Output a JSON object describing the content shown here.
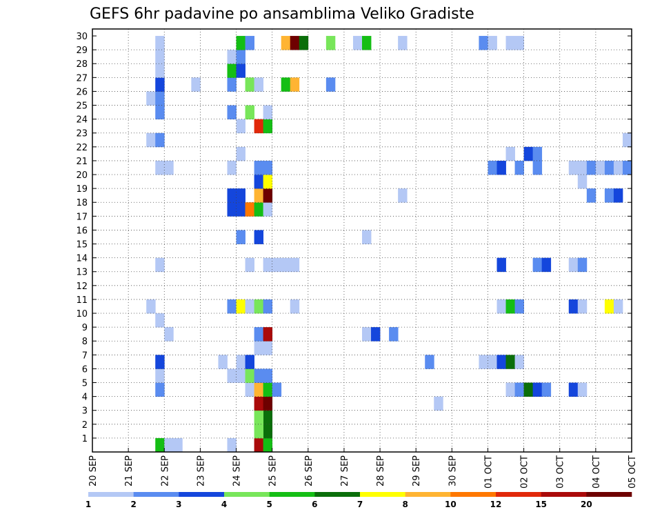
{
  "chart_data": {
    "type": "heatmap",
    "title": "GEFS 6hr padavine po ansamblima Veliko Gradiste",
    "xlabel": "",
    "ylabel": "",
    "x_tick_labels": [
      "20 SEP",
      "21 SEP",
      "22 SEP",
      "23 SEP",
      "24 SEP",
      "25 SEP",
      "26 SEP",
      "27 SEP",
      "28 SEP",
      "29 SEP",
      "30 SEP",
      "01 OCT",
      "02 OCT",
      "03 OCT",
      "04 OCT",
      "05 OCT"
    ],
    "y_tick_labels": [
      "1",
      "2",
      "3",
      "4",
      "5",
      "6",
      "7",
      "8",
      "9",
      "10",
      "11",
      "12",
      "13",
      "14",
      "15",
      "16",
      "17",
      "18",
      "19",
      "20",
      "21",
      "22",
      "23",
      "24",
      "25",
      "26",
      "27",
      "28",
      "29",
      "30"
    ],
    "x_unit": "6-hour step index from 20 SEP 00z",
    "xlim": [
      0,
      60
    ],
    "ylim": [
      0,
      30
    ],
    "grid": true,
    "colorbar": {
      "labels": [
        "1",
        "2",
        "3",
        "4",
        "5",
        "6",
        "7",
        "8",
        "10",
        "12",
        "15",
        "20"
      ],
      "colors": [
        "#b4c8f5",
        "#5a8cf0",
        "#1446dc",
        "#78e65a",
        "#14be14",
        "#0a6e0a",
        "#ffff00",
        "#ffb432",
        "#ff7800",
        "#e1280a",
        "#aa0a0a",
        "#6e0000"
      ]
    },
    "cells": [
      {
        "t": 7,
        "m": 0,
        "c": "#14be14"
      },
      {
        "t": 8,
        "m": 0,
        "c": "#b4c8f5"
      },
      {
        "t": 9,
        "m": 0,
        "c": "#b4c8f5"
      },
      {
        "t": 15,
        "m": 0,
        "c": "#b4c8f5"
      },
      {
        "t": 18,
        "m": 0,
        "c": "#aa0a0a"
      },
      {
        "t": 19,
        "m": 0,
        "c": "#14be14"
      },
      {
        "t": 19,
        "m": 1,
        "c": "#0a6e0a"
      },
      {
        "t": 18,
        "m": 1,
        "c": "#78e65a"
      },
      {
        "t": 19,
        "m": 2,
        "c": "#0a6e0a"
      },
      {
        "t": 18,
        "m": 2,
        "c": "#78e65a"
      },
      {
        "t": 18,
        "m": 3,
        "c": "#aa0a0a"
      },
      {
        "t": 19,
        "m": 3,
        "c": "#6e0000"
      },
      {
        "t": 38,
        "m": 3,
        "c": "#b4c8f5"
      },
      {
        "t": 7,
        "m": 4,
        "c": "#5a8cf0"
      },
      {
        "t": 17,
        "m": 4,
        "c": "#b4c8f5"
      },
      {
        "t": 18,
        "m": 4,
        "c": "#ffb432"
      },
      {
        "t": 19,
        "m": 4,
        "c": "#14be14"
      },
      {
        "t": 20,
        "m": 4,
        "c": "#5a8cf0"
      },
      {
        "t": 46,
        "m": 4,
        "c": "#b4c8f5"
      },
      {
        "t": 47,
        "m": 4,
        "c": "#5a8cf0"
      },
      {
        "t": 48,
        "m": 4,
        "c": "#0a6e0a"
      },
      {
        "t": 49,
        "m": 4,
        "c": "#1446dc"
      },
      {
        "t": 50,
        "m": 4,
        "c": "#5a8cf0"
      },
      {
        "t": 53,
        "m": 4,
        "c": "#1446dc"
      },
      {
        "t": 54,
        "m": 4,
        "c": "#b4c8f5"
      },
      {
        "t": 7,
        "m": 5,
        "c": "#b4c8f5"
      },
      {
        "t": 15,
        "m": 5,
        "c": "#b4c8f5"
      },
      {
        "t": 16,
        "m": 5,
        "c": "#b4c8f5"
      },
      {
        "t": 17,
        "m": 5,
        "c": "#78e65a"
      },
      {
        "t": 18,
        "m": 5,
        "c": "#5a8cf0"
      },
      {
        "t": 19,
        "m": 5,
        "c": "#5a8cf0"
      },
      {
        "t": 7,
        "m": 6,
        "c": "#1446dc"
      },
      {
        "t": 14,
        "m": 6,
        "c": "#b4c8f5"
      },
      {
        "t": 16,
        "m": 6,
        "c": "#b4c8f5"
      },
      {
        "t": 17,
        "m": 6,
        "c": "#1446dc"
      },
      {
        "t": 37,
        "m": 6,
        "c": "#5a8cf0"
      },
      {
        "t": 43,
        "m": 6,
        "c": "#b4c8f5"
      },
      {
        "t": 44,
        "m": 6,
        "c": "#b4c8f5"
      },
      {
        "t": 45,
        "m": 6,
        "c": "#1446dc"
      },
      {
        "t": 46,
        "m": 6,
        "c": "#0a6e0a"
      },
      {
        "t": 47,
        "m": 6,
        "c": "#b4c8f5"
      },
      {
        "t": 18,
        "m": 7,
        "c": "#b4c8f5"
      },
      {
        "t": 19,
        "m": 7,
        "c": "#b4c8f5"
      },
      {
        "t": 8,
        "m": 8,
        "c": "#b4c8f5"
      },
      {
        "t": 18,
        "m": 8,
        "c": "#5a8cf0"
      },
      {
        "t": 19,
        "m": 8,
        "c": "#aa0a0a"
      },
      {
        "t": 30,
        "m": 8,
        "c": "#b4c8f5"
      },
      {
        "t": 31,
        "m": 8,
        "c": "#1446dc"
      },
      {
        "t": 33,
        "m": 8,
        "c": "#5a8cf0"
      },
      {
        "t": 7,
        "m": 9,
        "c": "#b4c8f5"
      },
      {
        "t": 6,
        "m": 10,
        "c": "#b4c8f5"
      },
      {
        "t": 15,
        "m": 10,
        "c": "#5a8cf0"
      },
      {
        "t": 16,
        "m": 10,
        "c": "#ffff00"
      },
      {
        "t": 17,
        "m": 10,
        "c": "#b4c8f5"
      },
      {
        "t": 18,
        "m": 10,
        "c": "#78e65a"
      },
      {
        "t": 19,
        "m": 10,
        "c": "#5a8cf0"
      },
      {
        "t": 22,
        "m": 10,
        "c": "#b4c8f5"
      },
      {
        "t": 45,
        "m": 10,
        "c": "#b4c8f5"
      },
      {
        "t": 46,
        "m": 10,
        "c": "#14be14"
      },
      {
        "t": 47,
        "m": 10,
        "c": "#5a8cf0"
      },
      {
        "t": 53,
        "m": 10,
        "c": "#1446dc"
      },
      {
        "t": 54,
        "m": 10,
        "c": "#b4c8f5"
      },
      {
        "t": 57,
        "m": 10,
        "c": "#ffff00"
      },
      {
        "t": 58,
        "m": 10,
        "c": "#b4c8f5"
      },
      {
        "t": 7,
        "m": 13,
        "c": "#b4c8f5"
      },
      {
        "t": 17,
        "m": 13,
        "c": "#b4c8f5"
      },
      {
        "t": 19,
        "m": 13,
        "c": "#b4c8f5"
      },
      {
        "t": 20,
        "m": 13,
        "c": "#b4c8f5"
      },
      {
        "t": 21,
        "m": 13,
        "c": "#b4c8f5"
      },
      {
        "t": 22,
        "m": 13,
        "c": "#b4c8f5"
      },
      {
        "t": 45,
        "m": 13,
        "c": "#1446dc"
      },
      {
        "t": 49,
        "m": 13,
        "c": "#5a8cf0"
      },
      {
        "t": 50,
        "m": 13,
        "c": "#1446dc"
      },
      {
        "t": 53,
        "m": 13,
        "c": "#b4c8f5"
      },
      {
        "t": 54,
        "m": 13,
        "c": "#5a8cf0"
      },
      {
        "t": 16,
        "m": 15,
        "c": "#5a8cf0"
      },
      {
        "t": 18,
        "m": 15,
        "c": "#1446dc"
      },
      {
        "t": 30,
        "m": 15,
        "c": "#b4c8f5"
      },
      {
        "t": 15,
        "m": 17,
        "c": "#1446dc"
      },
      {
        "t": 16,
        "m": 17,
        "c": "#1446dc"
      },
      {
        "t": 17,
        "m": 17,
        "c": "#ff7800"
      },
      {
        "t": 18,
        "m": 17,
        "c": "#14be14"
      },
      {
        "t": 19,
        "m": 17,
        "c": "#b4c8f5"
      },
      {
        "t": 15,
        "m": 18,
        "c": "#1446dc"
      },
      {
        "t": 16,
        "m": 18,
        "c": "#1446dc"
      },
      {
        "t": 18,
        "m": 18,
        "c": "#ffb432"
      },
      {
        "t": 19,
        "m": 18,
        "c": "#6e0000"
      },
      {
        "t": 34,
        "m": 18,
        "c": "#b4c8f5"
      },
      {
        "t": 55,
        "m": 18,
        "c": "#5a8cf0"
      },
      {
        "t": 57,
        "m": 18,
        "c": "#5a8cf0"
      },
      {
        "t": 58,
        "m": 18,
        "c": "#1446dc"
      },
      {
        "t": 18,
        "m": 19,
        "c": "#1446dc"
      },
      {
        "t": 19,
        "m": 19,
        "c": "#ffff00"
      },
      {
        "t": 54,
        "m": 19,
        "c": "#b4c8f5"
      },
      {
        "t": 7,
        "m": 20,
        "c": "#b4c8f5"
      },
      {
        "t": 8,
        "m": 20,
        "c": "#b4c8f5"
      },
      {
        "t": 15,
        "m": 20,
        "c": "#b4c8f5"
      },
      {
        "t": 18,
        "m": 20,
        "c": "#5a8cf0"
      },
      {
        "t": 19,
        "m": 20,
        "c": "#5a8cf0"
      },
      {
        "t": 44,
        "m": 20,
        "c": "#5a8cf0"
      },
      {
        "t": 45,
        "m": 20,
        "c": "#1446dc"
      },
      {
        "t": 47,
        "m": 20,
        "c": "#5a8cf0"
      },
      {
        "t": 49,
        "m": 20,
        "c": "#5a8cf0"
      },
      {
        "t": 53,
        "m": 20,
        "c": "#b4c8f5"
      },
      {
        "t": 54,
        "m": 20,
        "c": "#b4c8f5"
      },
      {
        "t": 55,
        "m": 20,
        "c": "#5a8cf0"
      },
      {
        "t": 56,
        "m": 20,
        "c": "#b4c8f5"
      },
      {
        "t": 57,
        "m": 20,
        "c": "#5a8cf0"
      },
      {
        "t": 58,
        "m": 20,
        "c": "#b4c8f5"
      },
      {
        "t": 59,
        "m": 20,
        "c": "#5a8cf0"
      },
      {
        "t": 16,
        "m": 21,
        "c": "#b4c8f5"
      },
      {
        "t": 46,
        "m": 21,
        "c": "#b4c8f5"
      },
      {
        "t": 48,
        "m": 21,
        "c": "#1446dc"
      },
      {
        "t": 49,
        "m": 21,
        "c": "#5a8cf0"
      },
      {
        "t": 6,
        "m": 22,
        "c": "#b4c8f5"
      },
      {
        "t": 7,
        "m": 22,
        "c": "#5a8cf0"
      },
      {
        "t": 59,
        "m": 22,
        "c": "#b4c8f5"
      },
      {
        "t": 16,
        "m": 23,
        "c": "#b4c8f5"
      },
      {
        "t": 18,
        "m": 23,
        "c": "#e1280a"
      },
      {
        "t": 19,
        "m": 23,
        "c": "#14be14"
      },
      {
        "t": 7,
        "m": 24,
        "c": "#5a8cf0"
      },
      {
        "t": 15,
        "m": 24,
        "c": "#5a8cf0"
      },
      {
        "t": 17,
        "m": 24,
        "c": "#78e65a"
      },
      {
        "t": 19,
        "m": 24,
        "c": "#b4c8f5"
      },
      {
        "t": 6,
        "m": 25,
        "c": "#b4c8f5"
      },
      {
        "t": 7,
        "m": 25,
        "c": "#5a8cf0"
      },
      {
        "t": 7,
        "m": 26,
        "c": "#1446dc"
      },
      {
        "t": 11,
        "m": 26,
        "c": "#b4c8f5"
      },
      {
        "t": 15,
        "m": 26,
        "c": "#5a8cf0"
      },
      {
        "t": 17,
        "m": 26,
        "c": "#78e65a"
      },
      {
        "t": 18,
        "m": 26,
        "c": "#b4c8f5"
      },
      {
        "t": 21,
        "m": 26,
        "c": "#14be14"
      },
      {
        "t": 22,
        "m": 26,
        "c": "#ffb432"
      },
      {
        "t": 26,
        "m": 26,
        "c": "#5a8cf0"
      },
      {
        "t": 7,
        "m": 27,
        "c": "#b4c8f5"
      },
      {
        "t": 15,
        "m": 27,
        "c": "#14be14"
      },
      {
        "t": 16,
        "m": 27,
        "c": "#1446dc"
      },
      {
        "t": 7,
        "m": 28,
        "c": "#b4c8f5"
      },
      {
        "t": 15,
        "m": 28,
        "c": "#b4c8f5"
      },
      {
        "t": 16,
        "m": 28,
        "c": "#5a8cf0"
      },
      {
        "t": 7,
        "m": 29,
        "c": "#b4c8f5"
      },
      {
        "t": 16,
        "m": 29,
        "c": "#14be14"
      },
      {
        "t": 17,
        "m": 29,
        "c": "#5a8cf0"
      },
      {
        "t": 21,
        "m": 29,
        "c": "#ffb432"
      },
      {
        "t": 22,
        "m": 29,
        "c": "#6e0000"
      },
      {
        "t": 23,
        "m": 29,
        "c": "#0a6e0a"
      },
      {
        "t": 26,
        "m": 29,
        "c": "#78e65a"
      },
      {
        "t": 29,
        "m": 29,
        "c": "#b4c8f5"
      },
      {
        "t": 30,
        "m": 29,
        "c": "#14be14"
      },
      {
        "t": 34,
        "m": 29,
        "c": "#b4c8f5"
      },
      {
        "t": 43,
        "m": 29,
        "c": "#5a8cf0"
      },
      {
        "t": 44,
        "m": 29,
        "c": "#b4c8f5"
      },
      {
        "t": 46,
        "m": 29,
        "c": "#b4c8f5"
      },
      {
        "t": 47,
        "m": 29,
        "c": "#b4c8f5"
      }
    ]
  }
}
